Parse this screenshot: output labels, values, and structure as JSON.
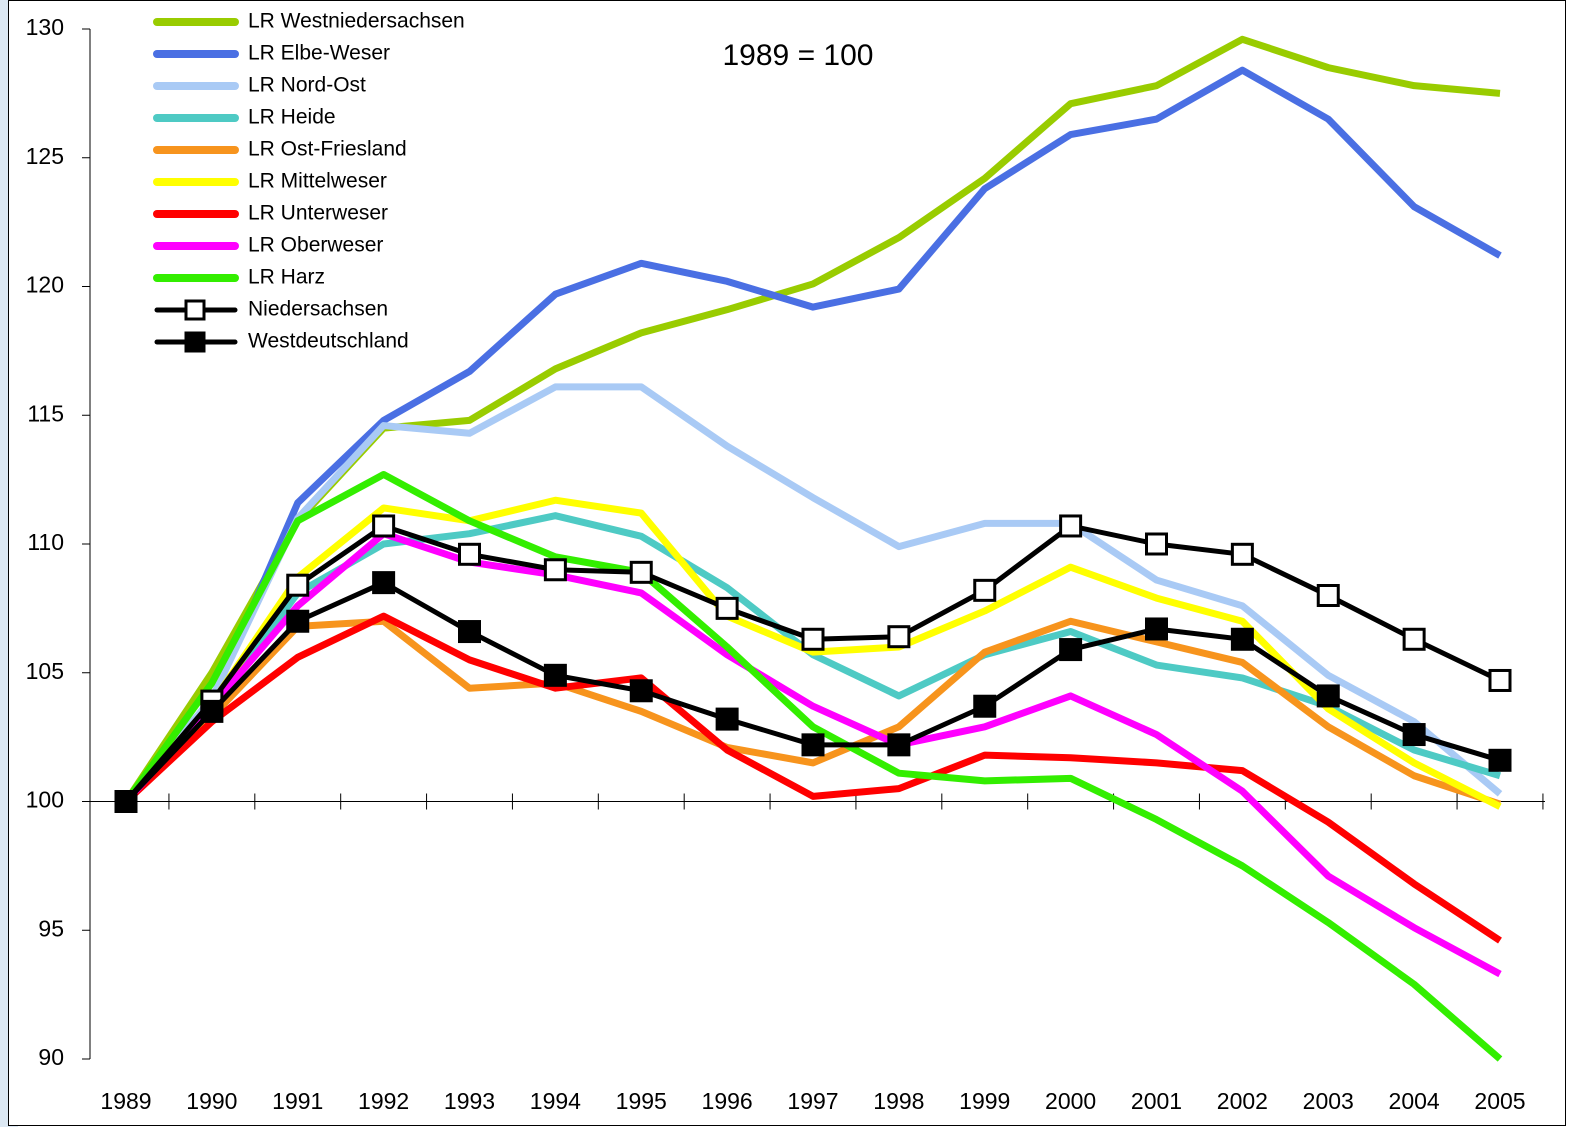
{
  "chart_data": {
    "type": "line",
    "annotation": "1989 = 100",
    "categories": [
      "1989",
      "1990",
      "1991",
      "1992",
      "1993",
      "1994",
      "1995",
      "1996",
      "1997",
      "1998",
      "1999",
      "2000",
      "2001",
      "2002",
      "2003",
      "2004",
      "2005"
    ],
    "ylim": [
      90,
      130
    ],
    "yticks": [
      90,
      95,
      100,
      105,
      110,
      115,
      120,
      125,
      130
    ],
    "series": [
      {
        "name": "LR Westniedersachsen",
        "color": "#99cc00",
        "values": [
          100,
          105,
          110.9,
          114.5,
          114.8,
          116.8,
          118.2,
          119.1,
          120.1,
          121.9,
          124.2,
          127.1,
          127.8,
          129.6,
          128.5,
          127.8,
          127.5
        ]
      },
      {
        "name": "LR Elbe-Weser",
        "color": "#4a6fe3",
        "values": [
          100,
          103.9,
          111.6,
          114.8,
          116.7,
          119.7,
          120.9,
          120.2,
          119.2,
          119.9,
          123.8,
          125.9,
          126.5,
          128.4,
          126.5,
          123.1,
          121.2
        ]
      },
      {
        "name": "LR Nord-Ost",
        "color": "#a9caf5",
        "values": [
          100,
          104,
          111,
          114.6,
          114.3,
          116.1,
          116.1,
          113.8,
          111.8,
          109.9,
          110.8,
          110.8,
          108.6,
          107.6,
          104.9,
          103.1,
          100.3
        ]
      },
      {
        "name": "LR Heide",
        "color": "#4ecac4",
        "values": [
          100,
          103.6,
          108.1,
          110,
          110.4,
          111.1,
          110.3,
          108.3,
          105.7,
          104.1,
          105.7,
          106.6,
          105.3,
          104.8,
          103.7,
          102,
          101
        ]
      },
      {
        "name": "LR Ost-Friesland",
        "color": "#f7941d",
        "values": [
          100,
          103.3,
          106.8,
          107,
          104.4,
          104.6,
          103.5,
          102.1,
          101.5,
          102.9,
          105.8,
          107,
          106.2,
          105.4,
          102.9,
          101,
          99.9
        ]
      },
      {
        "name": "LR Mittelweser",
        "color": "#ffff00",
        "values": [
          100,
          103.8,
          108.7,
          111.4,
          110.9,
          111.7,
          111.2,
          107.2,
          105.8,
          106,
          107.4,
          109.1,
          107.9,
          107,
          103.6,
          101.5,
          99.8
        ]
      },
      {
        "name": "LR Unterweser",
        "color": "#ff0000",
        "values": [
          100,
          103.1,
          105.6,
          107.2,
          105.5,
          104.4,
          104.8,
          102,
          100.2,
          100.5,
          101.8,
          101.7,
          101.5,
          101.2,
          99.2,
          96.8,
          94.6
        ]
      },
      {
        "name": "LR Oberweser",
        "color": "#ff00ff",
        "values": [
          100,
          103.7,
          107.6,
          110.4,
          109.3,
          108.8,
          108.1,
          105.7,
          103.7,
          102.2,
          102.9,
          104.1,
          102.6,
          100.4,
          97.1,
          95.1,
          93.3
        ]
      },
      {
        "name": "LR Harz",
        "color": "#33ee00",
        "values": [
          100,
          104.6,
          110.9,
          112.7,
          110.9,
          109.5,
          108.9,
          106,
          102.9,
          101.1,
          100.8,
          100.9,
          99.3,
          97.5,
          95.3,
          92.9,
          90
        ]
      },
      {
        "name": "Niedersachsen",
        "color": "#000000",
        "marker_fill": "#ffffff",
        "values": [
          100,
          103.9,
          108.4,
          110.7,
          109.6,
          109,
          108.9,
          107.5,
          106.3,
          106.4,
          108.2,
          110.7,
          110,
          109.6,
          108,
          106.3,
          104.7
        ]
      },
      {
        "name": "Westdeutschland",
        "color": "#000000",
        "marker_fill": "#000000",
        "values": [
          100,
          103.5,
          107,
          108.5,
          106.6,
          104.9,
          104.3,
          103.2,
          102.2,
          102.2,
          103.7,
          105.9,
          106.7,
          106.3,
          104.1,
          102.6,
          101.6
        ]
      }
    ]
  }
}
